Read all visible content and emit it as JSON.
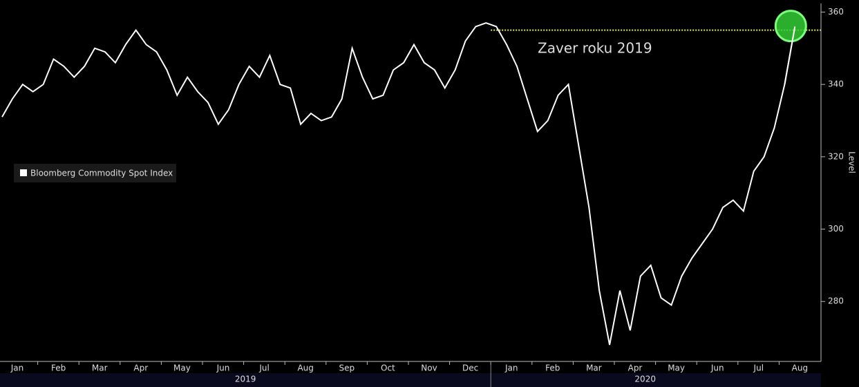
{
  "chart_data": {
    "type": "line",
    "title_annotation": "Zaver roku 2019",
    "ylabel": "Level",
    "categories": [
      "Jan",
      null,
      null,
      null,
      "Feb",
      null,
      null,
      null,
      "Mar",
      null,
      null,
      null,
      "Apr",
      null,
      null,
      null,
      "May",
      null,
      null,
      null,
      "Jun",
      null,
      null,
      null,
      "Jul",
      null,
      null,
      null,
      "Aug",
      null,
      null,
      null,
      "Sep",
      null,
      null,
      null,
      "Oct",
      null,
      null,
      null,
      "Nov",
      null,
      null,
      null,
      "Dec",
      null,
      null,
      null,
      "Jan",
      null,
      null,
      null,
      "Feb",
      null,
      null,
      null,
      "Mar",
      null,
      null,
      null,
      "Apr",
      null,
      null,
      null,
      "May",
      null,
      null,
      null,
      "Jun",
      null,
      null,
      null,
      "Jul",
      null,
      null,
      null,
      "Aug",
      null
    ],
    "years": [
      "2019",
      "2020"
    ],
    "series": [
      {
        "name": "Bloomberg Commodity Spot Index",
        "color": "#ffffff",
        "values": [
          331,
          336,
          340,
          338,
          340,
          347,
          345,
          342,
          345,
          350,
          349,
          346,
          351,
          355,
          351,
          349,
          344,
          337,
          342,
          338,
          335,
          329,
          333,
          340,
          345,
          342,
          348,
          340,
          339,
          329,
          332,
          330,
          331,
          336,
          350,
          342,
          336,
          337,
          344,
          346,
          351,
          346,
          344,
          339,
          344,
          352,
          356,
          357,
          356,
          351,
          345,
          336,
          327,
          330,
          337,
          340,
          323,
          306,
          283,
          268,
          283,
          272,
          287,
          290,
          281,
          279,
          287,
          292,
          296,
          300,
          306,
          308,
          305,
          316,
          320,
          328,
          340,
          356
        ]
      }
    ],
    "reference": {
      "value": 355,
      "color": "#e8e85a"
    },
    "highlight_color": "#33cc33",
    "ylim": [
      264,
      362
    ],
    "yticks": [
      280,
      300,
      320,
      340,
      360
    ]
  }
}
